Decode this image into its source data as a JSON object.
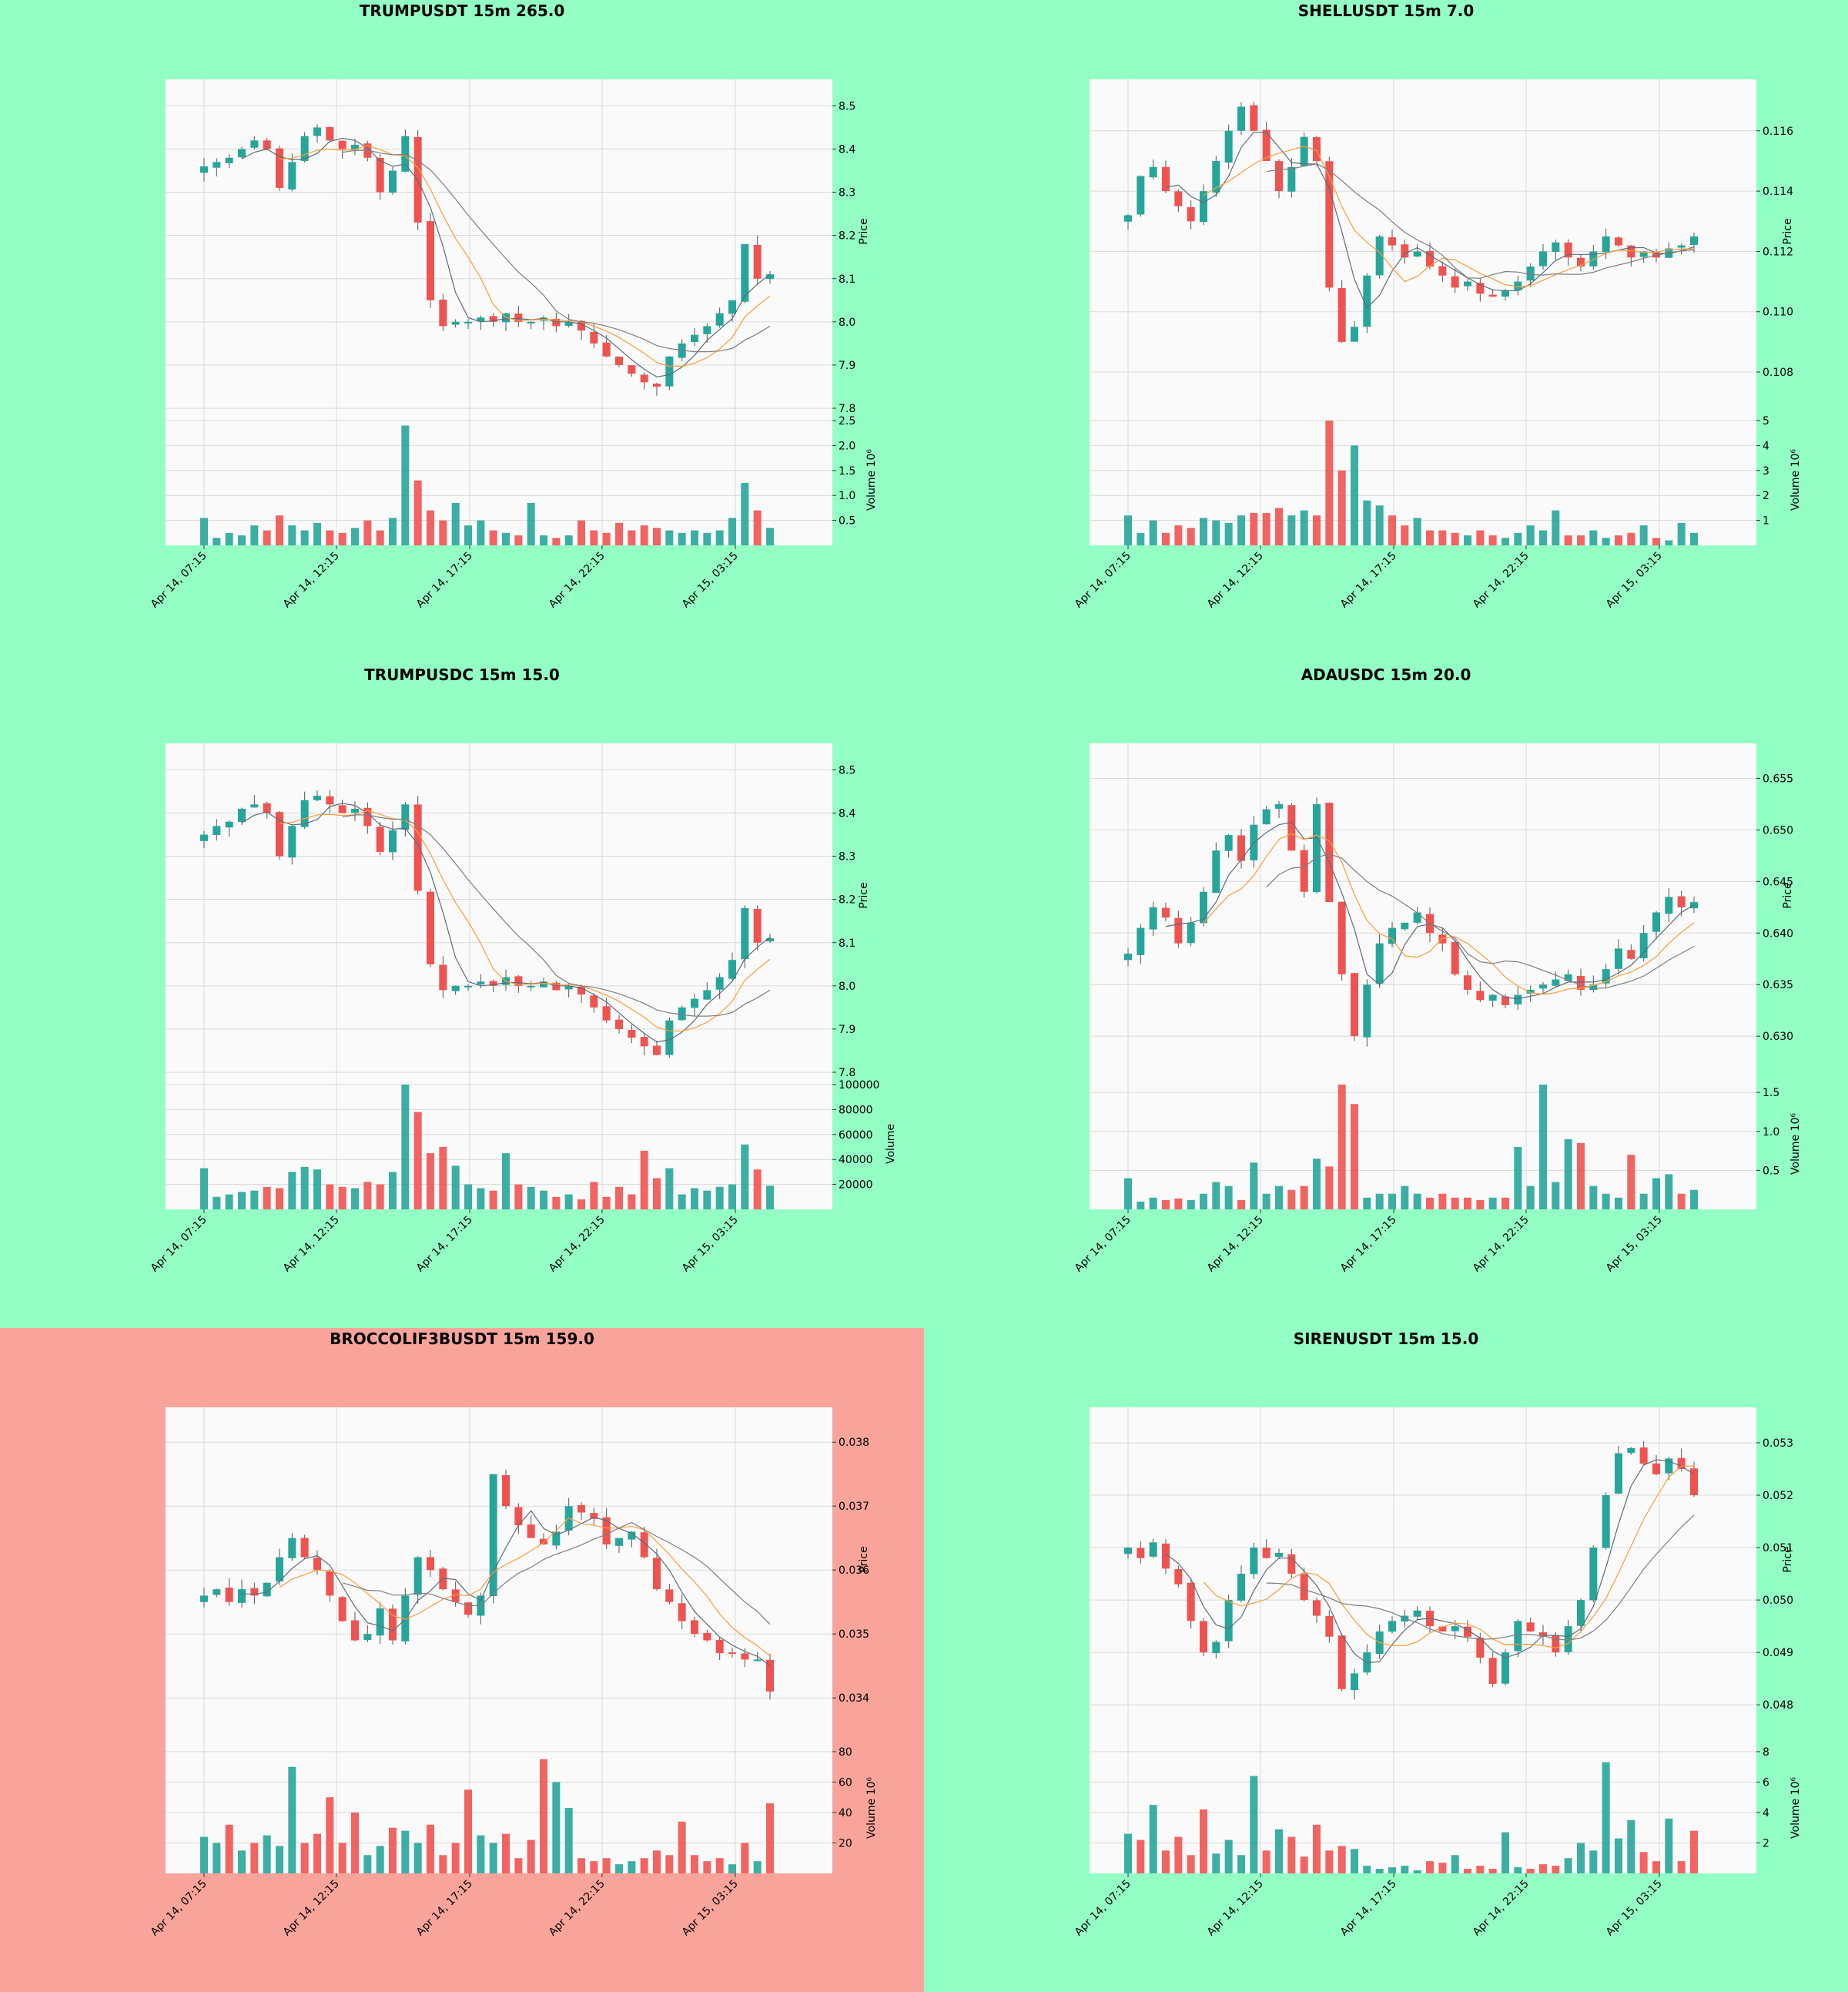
{
  "colors": {
    "background_default": "#93ffc4",
    "background_alert": "#f9a49b",
    "plot_face": "#fafafa",
    "grid": "#d9d9d9",
    "up_candle": "#26a69a",
    "down_candle": "#ef5350",
    "ma_fast": "#5b6b7a",
    "ma_mid": "#ff9c3a",
    "ma_slow": "#7d7d7d"
  },
  "x_tick_labels": [
    "Apr 14, 07:15",
    "Apr 14, 12:15",
    "Apr 14, 17:15",
    "Apr 14, 22:15",
    "Apr 15, 03:15"
  ],
  "price_axis_label": "Price",
  "volume_axis_label": "Volume  10⁶",
  "volume_axis_label_plain": "Volume",
  "charts": [
    {
      "title": "TRUMPUSDT 15m 265.0",
      "alert": false,
      "candles": 46,
      "price_ticks": [
        "8.5",
        "8.4",
        "8.3",
        "8.2",
        "8.1",
        "8.0",
        "7.9",
        "7.8"
      ],
      "price_range": [
        7.8,
        8.54
      ],
      "price_path": [
        8.36,
        8.37,
        8.38,
        8.4,
        8.42,
        8.4,
        8.31,
        8.37,
        8.43,
        8.45,
        8.42,
        8.4,
        8.41,
        8.38,
        8.3,
        8.35,
        8.43,
        8.23,
        8.05,
        7.99,
        8.0,
        8.0,
        8.01,
        8.0,
        8.02,
        8.0,
        8.0,
        8.01,
        7.99,
        8.0,
        7.98,
        7.95,
        7.92,
        7.9,
        7.88,
        7.86,
        7.85,
        7.92,
        7.95,
        7.97,
        7.99,
        8.02,
        8.05,
        8.18,
        8.1,
        8.11
      ],
      "volume_ticks": [
        "2.5",
        "2.0",
        "1.5",
        "1.0",
        "0.5"
      ],
      "volume_max": 2.5,
      "volume_path": [
        0.55,
        0.15,
        0.25,
        0.2,
        0.4,
        0.3,
        0.6,
        0.4,
        0.3,
        0.45,
        0.3,
        0.25,
        0.35,
        0.5,
        0.3,
        0.55,
        2.4,
        1.3,
        0.7,
        0.5,
        0.85,
        0.4,
        0.5,
        0.3,
        0.25,
        0.2,
        0.85,
        0.2,
        0.15,
        0.2,
        0.5,
        0.3,
        0.25,
        0.45,
        0.3,
        0.4,
        0.35,
        0.3,
        0.25,
        0.3,
        0.25,
        0.3,
        0.55,
        1.25,
        0.7,
        0.35
      ]
    },
    {
      "title": "SHELLUSDT 15m 7.0",
      "alert": false,
      "candles": 46,
      "price_ticks": [
        "0.116",
        "0.114",
        "0.112",
        "0.110",
        "0.108"
      ],
      "price_range": [
        0.1068,
        0.1174
      ],
      "price_path": [
        0.1132,
        0.1145,
        0.1148,
        0.114,
        0.1135,
        0.113,
        0.114,
        0.115,
        0.116,
        0.1168,
        0.116,
        0.115,
        0.114,
        0.1148,
        0.1158,
        0.115,
        0.1108,
        0.109,
        0.1095,
        0.1112,
        0.1125,
        0.1122,
        0.1118,
        0.112,
        0.1115,
        0.1112,
        0.1108,
        0.111,
        0.1106,
        0.1105,
        0.1107,
        0.111,
        0.1115,
        0.112,
        0.1123,
        0.1118,
        0.1115,
        0.112,
        0.1125,
        0.1122,
        0.1118,
        0.112,
        0.1118,
        0.1121,
        0.1122,
        0.1125
      ],
      "volume_ticks": [
        "5",
        "4",
        "3",
        "2",
        "1"
      ],
      "volume_max": 5.0,
      "volume_path": [
        1.2,
        0.5,
        1.0,
        0.5,
        0.8,
        0.7,
        1.1,
        1.0,
        0.9,
        1.2,
        1.3,
        1.3,
        1.5,
        1.2,
        1.4,
        1.2,
        5.0,
        3.0,
        4.0,
        1.8,
        1.6,
        1.2,
        0.8,
        1.1,
        0.6,
        0.6,
        0.5,
        0.4,
        0.6,
        0.4,
        0.3,
        0.5,
        0.8,
        0.6,
        1.4,
        0.4,
        0.4,
        0.6,
        0.3,
        0.4,
        0.5,
        0.8,
        0.3,
        0.2,
        0.9,
        0.5
      ]
    },
    {
      "title": "TRUMPUSDC 15m 15.0",
      "alert": false,
      "candles": 46,
      "price_ticks": [
        "8.5",
        "8.4",
        "8.3",
        "8.2",
        "8.1",
        "8.0",
        "7.9",
        "7.8"
      ],
      "price_range": [
        7.8,
        8.54
      ],
      "price_path": [
        8.35,
        8.37,
        8.38,
        8.41,
        8.42,
        8.4,
        8.3,
        8.37,
        8.43,
        8.44,
        8.42,
        8.4,
        8.41,
        8.37,
        8.31,
        8.36,
        8.42,
        8.22,
        8.05,
        7.99,
        8.0,
        8.0,
        8.01,
        8.0,
        8.02,
        8.0,
        8.0,
        8.01,
        7.99,
        8.0,
        7.98,
        7.95,
        7.92,
        7.9,
        7.88,
        7.86,
        7.84,
        7.92,
        7.95,
        7.97,
        7.99,
        8.02,
        8.06,
        8.18,
        8.1,
        8.11
      ],
      "volume_ticks": [
        "100000",
        "80000",
        "60000",
        "40000",
        "20000"
      ],
      "volume_max": 100000,
      "volume_path": [
        33000,
        10000,
        12000,
        14000,
        15000,
        18000,
        17000,
        30000,
        34000,
        32000,
        20000,
        18000,
        17000,
        22000,
        20000,
        30000,
        100000,
        78000,
        45000,
        50000,
        35000,
        20000,
        17000,
        15000,
        45000,
        20000,
        18000,
        15000,
        10000,
        12000,
        8000,
        22000,
        10000,
        18000,
        12000,
        47000,
        25000,
        33000,
        12000,
        17000,
        15000,
        18000,
        20000,
        52000,
        32000,
        19000
      ]
    },
    {
      "title": "ADAUSDC 15m 20.0",
      "alert": false,
      "candles": 46,
      "price_ticks": [
        "0.655",
        "0.650",
        "0.645",
        "0.640",
        "0.635",
        "0.630"
      ],
      "price_range": [
        0.6265,
        0.6575
      ],
      "price_path": [
        0.638,
        0.6405,
        0.6425,
        0.6415,
        0.639,
        0.641,
        0.644,
        0.648,
        0.6495,
        0.647,
        0.6505,
        0.652,
        0.6525,
        0.648,
        0.644,
        0.6525,
        0.643,
        0.636,
        0.63,
        0.635,
        0.639,
        0.6405,
        0.641,
        0.642,
        0.64,
        0.639,
        0.636,
        0.6345,
        0.6335,
        0.634,
        0.633,
        0.634,
        0.6345,
        0.635,
        0.6355,
        0.636,
        0.6345,
        0.635,
        0.6365,
        0.6385,
        0.6375,
        0.64,
        0.642,
        0.6435,
        0.6425,
        0.643
      ],
      "volume_ticks": [
        "1.5",
        "1.0",
        "0.5"
      ],
      "volume_max": 1.6,
      "volume_path": [
        0.4,
        0.1,
        0.15,
        0.12,
        0.14,
        0.12,
        0.2,
        0.35,
        0.3,
        0.12,
        0.6,
        0.2,
        0.3,
        0.25,
        0.3,
        0.65,
        0.55,
        1.6,
        1.35,
        0.15,
        0.2,
        0.2,
        0.3,
        0.2,
        0.15,
        0.2,
        0.15,
        0.15,
        0.12,
        0.15,
        0.15,
        0.8,
        0.3,
        1.6,
        0.35,
        0.9,
        0.85,
        0.3,
        0.2,
        0.15,
        0.7,
        0.2,
        0.4,
        0.45,
        0.2,
        0.25
      ]
    },
    {
      "title": "BROCCOLIF3BUSDT 15m 159.0",
      "alert": true,
      "candles": 46,
      "price_ticks": [
        "0.038",
        "0.037",
        "0.036",
        "0.035",
        "0.034"
      ],
      "price_range": [
        0.0334,
        0.0384
      ],
      "price_path": [
        0.0356,
        0.0357,
        0.0355,
        0.0357,
        0.0356,
        0.0358,
        0.0362,
        0.0365,
        0.0362,
        0.036,
        0.0356,
        0.0352,
        0.0349,
        0.035,
        0.0354,
        0.0349,
        0.0356,
        0.0362,
        0.036,
        0.0357,
        0.0355,
        0.0353,
        0.0356,
        0.0375,
        0.037,
        0.0367,
        0.0365,
        0.0364,
        0.0366,
        0.037,
        0.0369,
        0.0368,
        0.0364,
        0.0365,
        0.0366,
        0.0362,
        0.0357,
        0.0355,
        0.0352,
        0.035,
        0.0349,
        0.0347,
        0.0347,
        0.0346,
        0.0346,
        0.0341
      ],
      "volume_ticks": [
        "80",
        "60",
        "40",
        "20"
      ],
      "volume_max": 82,
      "volume_path": [
        24,
        20,
        32,
        15,
        20,
        25,
        18,
        70,
        20,
        26,
        50,
        20,
        40,
        12,
        18,
        30,
        28,
        20,
        32,
        12,
        20,
        55,
        25,
        20,
        26,
        10,
        22,
        75,
        60,
        43,
        10,
        8,
        10,
        6,
        8,
        10,
        15,
        12,
        34,
        12,
        8,
        10,
        6,
        20,
        8,
        46
      ]
    },
    {
      "title": "SIRENUSDT 15m 15.0",
      "alert": false,
      "candles": 46,
      "price_ticks": [
        "0.053",
        "0.052",
        "0.051",
        "0.050",
        "0.049",
        "0.048"
      ],
      "price_range": [
        0.0474,
        0.0535
      ],
      "price_path": [
        0.051,
        0.0508,
        0.0511,
        0.0506,
        0.0503,
        0.0496,
        0.049,
        0.0492,
        0.05,
        0.0505,
        0.051,
        0.0508,
        0.0509,
        0.0505,
        0.05,
        0.0497,
        0.0493,
        0.0483,
        0.0486,
        0.049,
        0.0494,
        0.0496,
        0.0497,
        0.0498,
        0.0495,
        0.0494,
        0.0495,
        0.0493,
        0.0489,
        0.0484,
        0.049,
        0.0496,
        0.0494,
        0.0493,
        0.049,
        0.0495,
        0.05,
        0.051,
        0.052,
        0.0528,
        0.0529,
        0.0526,
        0.0524,
        0.0527,
        0.0525,
        0.052
      ],
      "volume_ticks": [
        "8",
        "6",
        "4",
        "2"
      ],
      "volume_max": 8.2,
      "volume_path": [
        2.6,
        2.2,
        4.5,
        1.5,
        2.4,
        1.2,
        4.2,
        1.3,
        2.2,
        1.2,
        6.4,
        1.5,
        2.9,
        2.4,
        1.1,
        3.2,
        1.5,
        1.8,
        1.6,
        0.5,
        0.3,
        0.4,
        0.5,
        0.2,
        0.8,
        0.7,
        1.2,
        0.3,
        0.5,
        0.3,
        2.7,
        0.4,
        0.3,
        0.6,
        0.5,
        1.0,
        2.0,
        1.5,
        7.3,
        2.3,
        3.5,
        1.4,
        0.8,
        3.6,
        0.8,
        2.8
      ]
    }
  ],
  "chart_data": [
    {
      "type": "candlestick",
      "title": "TRUMPUSDT 15m 265.0",
      "ylabel": "Price",
      "ylim": [
        7.8,
        8.54
      ],
      "volume_label": "Volume  10⁶",
      "x_ticks": [
        "Apr 14, 07:15",
        "Apr 14, 12:15",
        "Apr 14, 17:15",
        "Apr 14, 22:15",
        "Apr 15, 03:15"
      ],
      "series": [
        {
          "name": "close",
          "values": [
            8.36,
            8.37,
            8.38,
            8.4,
            8.42,
            8.4,
            8.31,
            8.37,
            8.43,
            8.45,
            8.42,
            8.4,
            8.41,
            8.38,
            8.3,
            8.35,
            8.43,
            8.23,
            8.05,
            7.99,
            8.0,
            8.0,
            8.01,
            8.0,
            8.02,
            8.0,
            8.0,
            8.01,
            7.99,
            8.0,
            7.98,
            7.95,
            7.92,
            7.9,
            7.88,
            7.86,
            7.85,
            7.92,
            7.95,
            7.97,
            7.99,
            8.02,
            8.05,
            8.18,
            8.1,
            8.11
          ]
        }
      ]
    },
    {
      "type": "candlestick",
      "title": "SHELLUSDT 15m 7.0",
      "ylabel": "Price",
      "ylim": [
        0.1068,
        0.1174
      ],
      "volume_label": "Volume  10⁶",
      "x_ticks": [
        "Apr 14, 07:15",
        "Apr 14, 12:15",
        "Apr 14, 17:15",
        "Apr 14, 22:15",
        "Apr 15, 03:15"
      ],
      "series": [
        {
          "name": "close",
          "values": [
            0.1132,
            0.1145,
            0.1148,
            0.114,
            0.1135,
            0.113,
            0.114,
            0.115,
            0.116,
            0.1168,
            0.116,
            0.115,
            0.114,
            0.1148,
            0.1158,
            0.115,
            0.1108,
            0.109,
            0.1095,
            0.1112,
            0.1125,
            0.1122,
            0.1118,
            0.112,
            0.1115,
            0.1112,
            0.1108,
            0.111,
            0.1106,
            0.1105,
            0.1107,
            0.111,
            0.1115,
            0.112,
            0.1123,
            0.1118,
            0.1115,
            0.112,
            0.1125,
            0.1122,
            0.1118,
            0.112,
            0.1118,
            0.1121,
            0.1122,
            0.1125
          ]
        }
      ]
    },
    {
      "type": "candlestick",
      "title": "TRUMPUSDC 15m 15.0",
      "ylabel": "Price",
      "ylim": [
        7.8,
        8.54
      ],
      "volume_label": "Volume",
      "x_ticks": [
        "Apr 14, 07:15",
        "Apr 14, 12:15",
        "Apr 14, 17:15",
        "Apr 14, 22:15",
        "Apr 15, 03:15"
      ],
      "series": [
        {
          "name": "close",
          "values": [
            8.35,
            8.37,
            8.38,
            8.41,
            8.42,
            8.4,
            8.3,
            8.37,
            8.43,
            8.44,
            8.42,
            8.4,
            8.41,
            8.37,
            8.31,
            8.36,
            8.42,
            8.22,
            8.05,
            7.99,
            8.0,
            8.0,
            8.01,
            8.0,
            8.02,
            8.0,
            8.0,
            8.01,
            7.99,
            8.0,
            7.98,
            7.95,
            7.92,
            7.9,
            7.88,
            7.86,
            7.84,
            7.92,
            7.95,
            7.97,
            7.99,
            8.02,
            8.06,
            8.18,
            8.1,
            8.11
          ]
        }
      ]
    },
    {
      "type": "candlestick",
      "title": "ADAUSDC 15m 20.0",
      "ylabel": "Price",
      "ylim": [
        0.6265,
        0.6575
      ],
      "volume_label": "Volume  10⁶",
      "x_ticks": [
        "Apr 14, 07:15",
        "Apr 14, 12:15",
        "Apr 14, 17:15",
        "Apr 14, 22:15",
        "Apr 15, 03:15"
      ],
      "series": [
        {
          "name": "close",
          "values": [
            0.638,
            0.6405,
            0.6425,
            0.6415,
            0.639,
            0.641,
            0.644,
            0.648,
            0.6495,
            0.647,
            0.6505,
            0.652,
            0.6525,
            0.648,
            0.644,
            0.6525,
            0.643,
            0.636,
            0.63,
            0.635,
            0.639,
            0.6405,
            0.641,
            0.642,
            0.64,
            0.639,
            0.636,
            0.6345,
            0.6335,
            0.634,
            0.633,
            0.634,
            0.6345,
            0.635,
            0.6355,
            0.636,
            0.6345,
            0.635,
            0.6365,
            0.6385,
            0.6375,
            0.64,
            0.642,
            0.6435,
            0.6425,
            0.643
          ]
        }
      ]
    },
    {
      "type": "candlestick",
      "title": "BROCCOLIF3BUSDT 15m 159.0",
      "ylabel": "Price",
      "ylim": [
        0.0334,
        0.0384
      ],
      "volume_label": "Volume  10⁶",
      "x_ticks": [
        "Apr 14, 07:15",
        "Apr 14, 12:15",
        "Apr 14, 17:15",
        "Apr 14, 22:15",
        "Apr 15, 03:15"
      ],
      "series": [
        {
          "name": "close",
          "values": [
            0.0356,
            0.0357,
            0.0355,
            0.0357,
            0.0356,
            0.0358,
            0.0362,
            0.0365,
            0.0362,
            0.036,
            0.0356,
            0.0352,
            0.0349,
            0.035,
            0.0354,
            0.0349,
            0.0356,
            0.0362,
            0.036,
            0.0357,
            0.0355,
            0.0353,
            0.0356,
            0.0375,
            0.037,
            0.0367,
            0.0365,
            0.0364,
            0.0366,
            0.037,
            0.0369,
            0.0368,
            0.0364,
            0.0365,
            0.0366,
            0.0362,
            0.0357,
            0.0355,
            0.0352,
            0.035,
            0.0349,
            0.0347,
            0.0347,
            0.0346,
            0.0346,
            0.0341
          ]
        }
      ]
    },
    {
      "type": "candlestick",
      "title": "SIRENUSDT 15m 15.0",
      "ylabel": "Price",
      "ylim": [
        0.0474,
        0.0535
      ],
      "volume_label": "Volume  10⁶",
      "x_ticks": [
        "Apr 14, 07:15",
        "Apr 14, 12:15",
        "Apr 14, 17:15",
        "Apr 14, 22:15",
        "Apr 15, 03:15"
      ],
      "series": [
        {
          "name": "close",
          "values": [
            0.051,
            0.0508,
            0.0511,
            0.0506,
            0.0503,
            0.0496,
            0.049,
            0.0492,
            0.05,
            0.0505,
            0.051,
            0.0508,
            0.0509,
            0.0505,
            0.05,
            0.0497,
            0.0493,
            0.0483,
            0.0486,
            0.049,
            0.0494,
            0.0496,
            0.0497,
            0.0498,
            0.0495,
            0.0494,
            0.0495,
            0.0493,
            0.0489,
            0.0484,
            0.049,
            0.0496,
            0.0494,
            0.0493,
            0.049,
            0.0495,
            0.05,
            0.051,
            0.052,
            0.0528,
            0.0529,
            0.0526,
            0.0524,
            0.0527,
            0.0525,
            0.052
          ]
        }
      ]
    }
  ]
}
